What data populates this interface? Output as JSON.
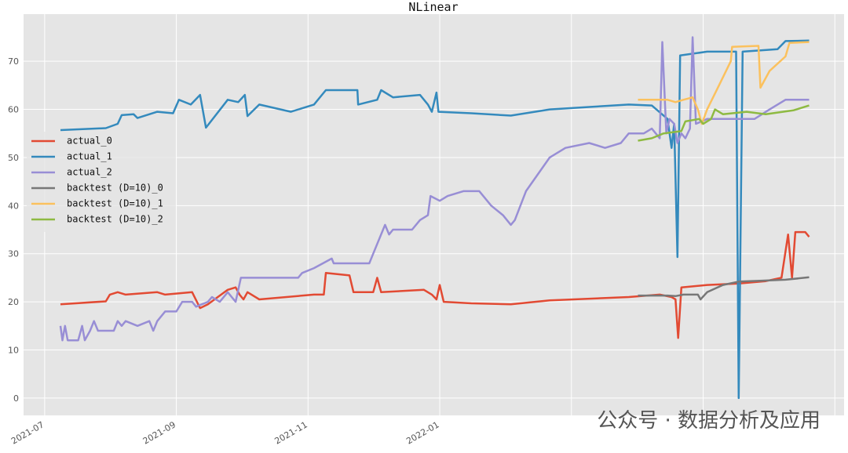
{
  "chart_data": {
    "type": "line",
    "title": "NLinear",
    "xlim": [
      -0.32,
      12.14
    ],
    "ylim": [
      -3.6,
      79.8
    ],
    "xticks": [
      {
        "value": 0,
        "label": "2021-07"
      },
      {
        "value": 2,
        "label": "2021-09"
      },
      {
        "value": 4,
        "label": "2021-11"
      },
      {
        "value": 6,
        "label": "2022-01"
      },
      {
        "value": 8,
        "label": null
      },
      {
        "value": 10,
        "label": null
      },
      {
        "value": 12,
        "label": null
      }
    ],
    "yticks": [
      0,
      10,
      20,
      30,
      40,
      50,
      60,
      70
    ],
    "grid": true,
    "legend": "center left",
    "watermark": "公众号 · 数据分析及应用",
    "series": [
      {
        "name": "actual_0",
        "color": "#E24A33",
        "x": [
          0.24,
          0.93,
          0.99,
          1.11,
          1.23,
          1.71,
          1.83,
          2.24,
          2.36,
          2.48,
          2.78,
          2.9,
          2.96,
          3.02,
          3.08,
          3.26,
          4.09,
          4.24,
          4.27,
          4.63,
          4.69,
          4.99,
          5.05,
          5.11,
          5.76,
          5.88,
          5.95,
          6.0,
          6.06,
          6.48,
          7.08,
          7.67,
          8.87,
          9.34,
          9.52,
          9.58,
          9.62,
          9.67,
          10.06,
          10.54,
          10.95,
          11.19,
          11.29,
          11.35,
          11.4,
          11.55,
          11.61
        ],
        "values": [
          19.5,
          20.1,
          21.5,
          22,
          21.5,
          22,
          21.5,
          22,
          18.7,
          19.5,
          22.5,
          23,
          21.5,
          20.5,
          22,
          20.5,
          21.5,
          21.5,
          26,
          25.5,
          22,
          22,
          25,
          22,
          22.5,
          21.5,
          20.5,
          23.5,
          20,
          19.7,
          19.5,
          20.3,
          21,
          21.5,
          21,
          20.5,
          12.5,
          23,
          23.5,
          23.8,
          24.3,
          25,
          34,
          25,
          34.5,
          34.5,
          33.5
        ]
      },
      {
        "name": "actual_1",
        "color": "#348ABD",
        "x": [
          0.24,
          0.93,
          1.11,
          1.17,
          1.35,
          1.41,
          1.71,
          1.95,
          2.04,
          2.22,
          2.36,
          2.45,
          2.78,
          2.94,
          3.04,
          3.08,
          3.26,
          3.74,
          4.09,
          4.27,
          4.75,
          4.76,
          5.05,
          5.11,
          5.29,
          5.7,
          5.82,
          5.88,
          5.95,
          5.98,
          6.48,
          7.08,
          7.67,
          8.27,
          8.87,
          9.22,
          9.46,
          9.52,
          9.56,
          9.61,
          9.65,
          10.06,
          10.5,
          10.54,
          10.6,
          11.13,
          11.25,
          11.61
        ],
        "values": [
          55.7,
          56.1,
          57,
          58.8,
          59,
          58.2,
          59.5,
          59.2,
          62,
          61,
          63,
          56.2,
          62,
          61.5,
          63,
          58.6,
          61,
          59.5,
          61,
          64,
          64,
          61,
          62,
          64,
          62.5,
          63,
          61,
          59.5,
          63.5,
          59.5,
          59.2,
          58.7,
          60,
          60.5,
          61,
          60.8,
          58,
          52,
          57,
          29.3,
          71.2,
          72,
          72,
          0,
          72,
          72.5,
          74.2,
          74.3
        ]
      },
      {
        "name": "actual_2",
        "color": "#988ED5",
        "x": [
          0.24,
          0.27,
          0.31,
          0.35,
          0.51,
          0.57,
          0.61,
          0.69,
          0.75,
          0.81,
          1.05,
          1.11,
          1.17,
          1.23,
          1.41,
          1.59,
          1.65,
          1.71,
          1.83,
          2.0,
          2.09,
          2.24,
          2.3,
          2.48,
          2.54,
          2.66,
          2.78,
          2.9,
          2.98,
          3.85,
          3.91,
          4.09,
          4.36,
          4.39,
          4.93,
          4.99,
          5.17,
          5.23,
          5.29,
          5.58,
          5.7,
          5.82,
          5.86,
          6.0,
          6.12,
          6.36,
          6.6,
          6.78,
          6.96,
          7.08,
          7.14,
          7.31,
          7.67,
          7.91,
          8.27,
          8.51,
          8.75,
          8.87,
          9.1,
          9.22,
          9.34,
          9.38,
          9.44,
          9.49,
          9.56,
          9.61,
          9.67,
          9.73,
          9.8,
          9.84,
          9.89,
          10.06,
          10.78,
          11.01,
          11.25,
          11.61
        ],
        "values": [
          15,
          12,
          15,
          12,
          12,
          15,
          12,
          14,
          16,
          14,
          14,
          16,
          15,
          16,
          15,
          16,
          14,
          16,
          18,
          18,
          20,
          20,
          19,
          20,
          21,
          20,
          22,
          20,
          25,
          25,
          26,
          27,
          29,
          28,
          28,
          30,
          36,
          34,
          35,
          35,
          37,
          38,
          42,
          41,
          42,
          43,
          43,
          40,
          38,
          36,
          37,
          43,
          50,
          52,
          53,
          52,
          53,
          55,
          55,
          56,
          54,
          74,
          55,
          58,
          57,
          53,
          55,
          54,
          56,
          75,
          57,
          58,
          58,
          60,
          62,
          62
        ]
      },
      {
        "name": "backtest (D=10)_0",
        "color": "#777777",
        "x": [
          9.01,
          9.46,
          9.58,
          9.7,
          9.92,
          9.96,
          10.06,
          10.3,
          10.54,
          10.9,
          11.25,
          11.61
        ],
        "values": [
          21.3,
          21.3,
          21.2,
          21.5,
          21.5,
          20.5,
          22,
          23.5,
          24.2,
          24.4,
          24.6,
          25.1
        ]
      },
      {
        "name": "backtest (D=10)_1",
        "color": "#FBC15E",
        "x": [
          9.01,
          9.46,
          9.58,
          9.7,
          9.84,
          9.92,
          9.98,
          10.06,
          10.24,
          10.42,
          10.44,
          10.84,
          10.87,
          11.01,
          11.25,
          11.31,
          11.61
        ],
        "values": [
          62,
          62,
          61.5,
          62,
          62.5,
          60,
          57,
          60,
          65,
          70,
          73,
          73.2,
          64.5,
          68,
          71,
          73.8,
          74
        ]
      },
      {
        "name": "backtest (D=10)_2",
        "color": "#8EBA42",
        "x": [
          9.01,
          9.22,
          9.4,
          9.67,
          9.73,
          9.94,
          10.0,
          10.12,
          10.18,
          10.3,
          10.66,
          10.95,
          11.37,
          11.61
        ],
        "values": [
          53.5,
          54,
          55,
          55.5,
          57.5,
          58,
          57,
          58,
          60,
          59,
          59.5,
          59,
          59.8,
          60.8
        ]
      }
    ]
  }
}
